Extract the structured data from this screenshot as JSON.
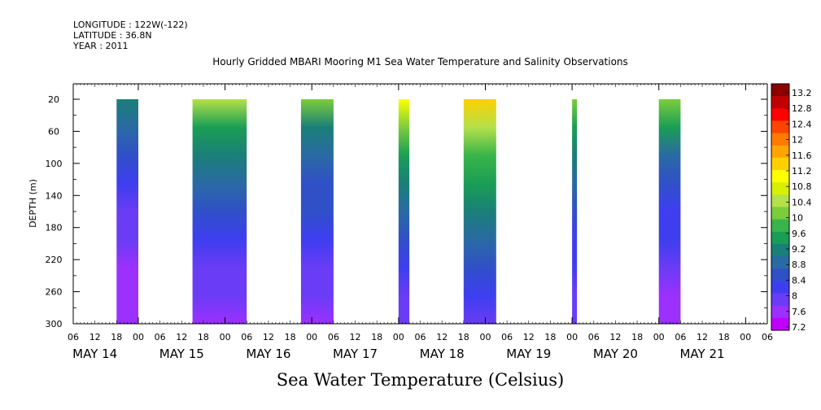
{
  "meta": {
    "longitude": "LONGITUDE : 122W(-122)",
    "latitude": "LATITUDE : 36.8N",
    "year": "YEAR : 2011"
  },
  "chart_data": {
    "type": "heatmap",
    "title": "Hourly Gridded MBARI Mooring M1 Sea Water Temperature and Salinity Observations",
    "xlabel": "Sea Water Temperature (Celsius)",
    "ylabel": "DEPTH (m)",
    "y_axis": {
      "ticks": [
        20,
        60,
        100,
        140,
        180,
        220,
        260,
        300
      ],
      "range": [
        0,
        300
      ],
      "inverted": true
    },
    "x_axis": {
      "hour_ticks": [
        "06",
        "12",
        "18",
        "00",
        "06",
        "12",
        "18",
        "00",
        "06",
        "12",
        "18",
        "00",
        "06",
        "12",
        "18",
        "00",
        "06",
        "12",
        "18",
        "00",
        "06",
        "12",
        "18",
        "00",
        "06",
        "12",
        "18",
        "00",
        "06",
        "12",
        "18",
        "00",
        "06"
      ],
      "day_labels": [
        "MAY 14",
        "MAY 15",
        "MAY 16",
        "MAY 17",
        "MAY 18",
        "MAY 19",
        "MAY 20",
        "MAY 21"
      ]
    },
    "colorbar": {
      "levels": [
        "13.2",
        "12.8",
        "12.4",
        "12",
        "11.6",
        "11.2",
        "10.8",
        "10.4",
        "10",
        "9.6",
        "9.2",
        "8.8",
        "8.4",
        "8",
        "7.6",
        "7.2"
      ],
      "colors": [
        "#8b0000",
        "#c00000",
        "#ff0000",
        "#ff4400",
        "#ff7a00",
        "#ffa500",
        "#ffd000",
        "#ffff00",
        "#d6f000",
        "#b4e04a",
        "#7ccd3c",
        "#3ab44a",
        "#1a9e55",
        "#1a7f78",
        "#2a6aa3",
        "#3050c8",
        "#3e3ef0",
        "#6a3cf5",
        "#9b30ff",
        "#c000ff"
      ],
      "scale": [
        7.2,
        13.2
      ]
    },
    "segments": [
      {
        "start": "May 14 18",
        "end": "May 15 00",
        "depth_top": 20,
        "surface_value": 9.2,
        "bottom_value": 7.4
      },
      {
        "start": "May 15 15",
        "end": "May 16 06",
        "depth_top": 20,
        "surface_value": 10.5,
        "bottom_value": 7.5
      },
      {
        "start": "May 16 21",
        "end": "May 17 06",
        "depth_top": 20,
        "surface_value": 10.0,
        "bottom_value": 7.6
      },
      {
        "start": "May 18 00",
        "end": "May 18 03",
        "depth_top": 20,
        "surface_value": 11.0,
        "bottom_value": 7.7
      },
      {
        "start": "May 18 18",
        "end": "May 19 03",
        "depth_top": 20,
        "surface_value": 11.4,
        "bottom_value": 7.9
      },
      {
        "start": "May 20 00",
        "end": "May 20 00",
        "depth_top": 20,
        "surface_value": 10.2,
        "bottom_value": 7.7
      },
      {
        "start": "May 21 00",
        "end": "May 21 06",
        "depth_top": 20,
        "surface_value": 10.2,
        "bottom_value": 7.4
      }
    ]
  }
}
